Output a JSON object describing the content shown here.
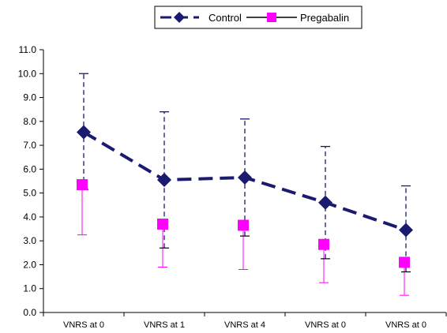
{
  "chart_data": {
    "type": "line",
    "title": "",
    "xlabel": "",
    "ylabel": "",
    "ylim": [
      0,
      11
    ],
    "yticks": [
      "0.0",
      "1.0",
      "2.0",
      "3.0",
      "4.0",
      "5.0",
      "6.0",
      "7.0",
      "8.0",
      "9.0",
      "10.0",
      "11.0"
    ],
    "categories": [
      "VNRS at 0",
      "VNRS at 1",
      "VNRS at 4",
      "VNRS at 0",
      "VNRS at 0"
    ],
    "legend_position": "top-center",
    "series": [
      {
        "name": "Control",
        "color": "#1a1a6e",
        "marker": "diamond",
        "line_style": "dashed",
        "values": [
          7.55,
          5.55,
          5.65,
          4.6,
          3.45
        ],
        "error_upper": [
          10.0,
          8.4,
          8.1,
          6.95,
          5.3
        ],
        "error_lower": [
          5.15,
          2.7,
          3.2,
          2.25,
          1.7
        ]
      },
      {
        "name": "Pregabalin",
        "color": "#ff00ff",
        "marker": "square",
        "line_style": "none",
        "values": [
          5.35,
          3.7,
          3.65,
          2.85,
          2.1
        ],
        "error_upper": [
          5.35,
          3.7,
          3.65,
          2.85,
          2.1
        ],
        "error_lower": [
          3.25,
          1.9,
          1.8,
          1.25,
          0.72
        ]
      }
    ]
  }
}
